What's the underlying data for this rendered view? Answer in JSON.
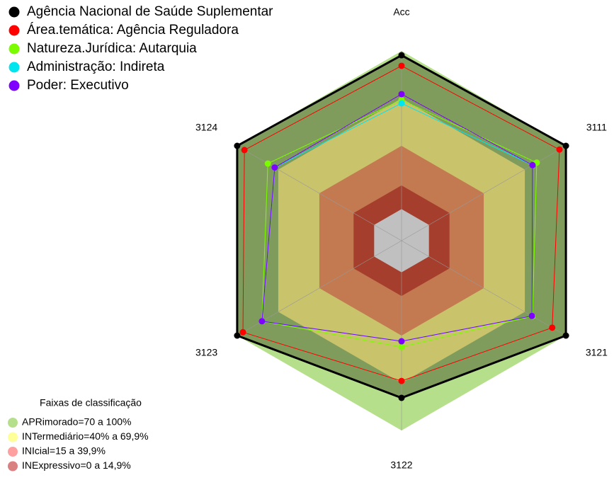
{
  "chart_data": {
    "type": "radar",
    "categories": [
      "Acc",
      "3111",
      "3121",
      "3122",
      "3123",
      "3124"
    ],
    "rlim": [
      -20,
      100
    ],
    "center_color": "#c0c0c0",
    "series": [
      {
        "name": "Agência Nacional de Saúde Suplementar",
        "color": "#000000",
        "fill": "#809c5c",
        "values": [
          97.3,
          100,
          100,
          79.4,
          100,
          100
        ]
      },
      {
        "name": "Área.temática: Agência Reguladora",
        "color": "#ff0000",
        "values": [
          90.6,
          95.3,
          90,
          68.7,
          95.8,
          94.7
        ]
      },
      {
        "name": "Natureza.Jurídica: Autarquia",
        "color": "#7cfc00",
        "values": [
          69,
          78.7,
          75.6,
          47.2,
          81.9,
          77.6
        ]
      },
      {
        "name": "Administração: Indireta",
        "color": "#00e5ee",
        "values": [
          66.9,
          75.6,
          75.2,
          43.6,
          81.9,
          72.6
        ]
      },
      {
        "name": "Poder: Executivo",
        "color": "#7f00ff",
        "values": [
          72.7,
          75.6,
          75.2,
          43.6,
          81.9,
          72.6
        ]
      }
    ],
    "bands_title": "Faixas de classificação",
    "bands": [
      {
        "name": "APRimorado=70 a 100%",
        "from": 70,
        "to": 100,
        "color": "#b5df8b",
        "key_color": "#b5df8b"
      },
      {
        "name": "INTermediário=40% a 69,9%",
        "from": 40,
        "to": 70,
        "color": "#c9c36c",
        "key_color": "#ffff99"
      },
      {
        "name": "INIcial=15 a 39,9%",
        "from": 15,
        "to": 40,
        "color": "#c37a50",
        "key_color": "#ffa0a0"
      },
      {
        "name": "INExpressivo=0 a 14,9%",
        "from": 0,
        "to": 15,
        "color": "#a53e2c",
        "key_color": "#d98080"
      }
    ]
  }
}
